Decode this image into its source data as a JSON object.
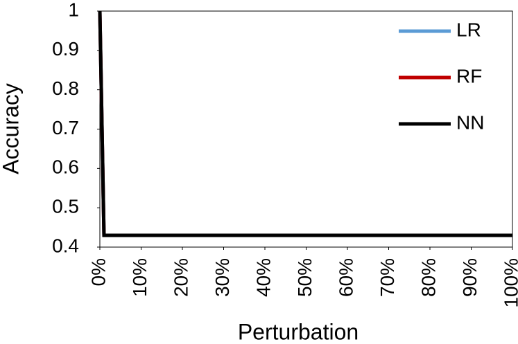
{
  "chart_data": {
    "type": "line",
    "x_label": "Perturbation",
    "y_label": "Accuracy",
    "x": [
      0,
      1,
      100
    ],
    "series": [
      {
        "name": "LR",
        "color": "#5b9bd5",
        "values": [
          1,
          0.43,
          0.43
        ]
      },
      {
        "name": "RF",
        "color": "#c00000",
        "values": [
          1,
          0.43,
          0.43
        ]
      },
      {
        "name": "NN",
        "color": "#000000",
        "values": [
          1,
          0.43,
          0.43
        ]
      }
    ],
    "xlim": [
      0,
      100
    ],
    "xticks": [
      {
        "value": 0,
        "label": "0%"
      },
      {
        "value": 10,
        "label": "10%"
      },
      {
        "value": 20,
        "label": "20%"
      },
      {
        "value": 30,
        "label": "30%"
      },
      {
        "value": 40,
        "label": "40%"
      },
      {
        "value": 50,
        "label": "50%"
      },
      {
        "value": 60,
        "label": "60%"
      },
      {
        "value": 70,
        "label": "70%"
      },
      {
        "value": 80,
        "label": "80%"
      },
      {
        "value": 90,
        "label": "90%"
      },
      {
        "value": 100,
        "label": "100%"
      }
    ],
    "ylim": [
      0.4,
      1
    ],
    "yticks": [
      0.4,
      0.5,
      0.6,
      0.7,
      0.8,
      0.9,
      1
    ],
    "legend": "top-right"
  }
}
